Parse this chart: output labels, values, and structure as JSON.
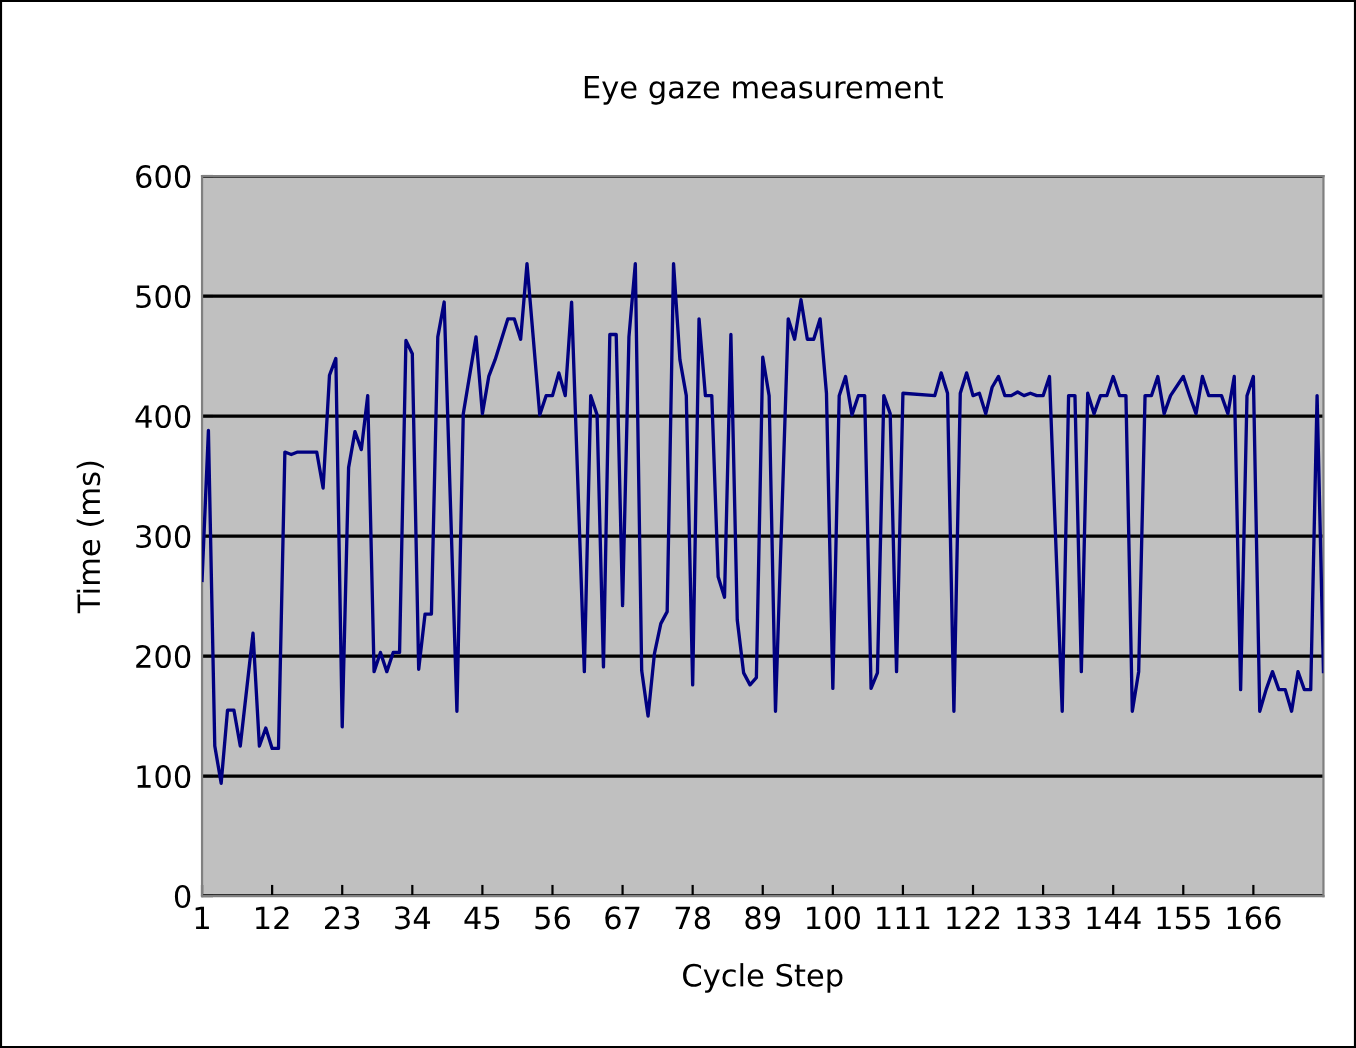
{
  "chart_data": {
    "type": "line",
    "title": "Eye gaze measurement",
    "xlabel": "Cycle Step",
    "ylabel": "Time (ms)",
    "x": [
      1,
      2,
      3,
      4,
      5,
      6,
      7,
      9,
      10,
      11,
      12,
      13,
      14,
      15,
      16,
      19,
      20,
      21,
      22,
      23,
      24,
      25,
      26,
      27,
      28,
      29,
      30,
      31,
      32,
      33,
      34,
      35,
      36,
      37,
      38,
      39,
      41,
      42,
      44,
      45,
      46,
      47,
      49,
      50,
      51,
      52,
      54,
      55,
      56,
      57,
      58,
      59,
      61,
      62,
      63,
      64,
      65,
      66,
      67,
      68,
      69,
      70,
      71,
      72,
      73,
      74,
      75,
      76,
      77,
      78,
      79,
      80,
      81,
      82,
      83,
      84,
      85,
      86,
      87,
      88,
      89,
      90,
      91,
      93,
      94,
      95,
      96,
      97,
      98,
      99,
      100,
      101,
      102,
      103,
      104,
      105,
      106,
      107,
      108,
      109,
      110,
      111,
      116,
      117,
      118,
      119,
      120,
      121,
      122,
      123,
      124,
      125,
      126,
      127,
      128,
      129,
      130,
      131,
      132,
      133,
      134,
      136,
      137,
      138,
      139,
      140,
      141,
      142,
      143,
      144,
      145,
      146,
      147,
      148,
      149,
      150,
      151,
      152,
      153,
      155,
      156,
      157,
      158,
      159,
      161,
      162,
      163,
      164,
      165,
      166,
      167,
      168,
      169,
      170,
      171,
      172,
      173,
      174,
      175,
      176,
      177
    ],
    "series": [
      {
        "color": "#000080",
        "values": [
          263,
          388,
          125,
          94,
          155,
          155,
          125,
          219,
          125,
          140,
          123,
          123,
          370,
          368,
          370,
          370,
          340,
          434,
          448,
          141,
          357,
          387,
          372,
          417,
          187,
          203,
          187,
          203,
          203,
          463,
          452,
          189,
          235,
          235,
          466,
          495,
          154,
          402,
          466,
          402,
          433,
          447,
          481,
          481,
          464,
          527,
          401,
          417,
          417,
          436,
          417,
          495,
          187,
          417,
          401,
          191,
          468,
          468,
          242,
          466,
          527,
          188,
          150,
          202,
          227,
          237,
          527,
          447,
          417,
          176,
          481,
          417,
          417,
          266,
          249,
          468,
          230,
          186,
          176,
          182,
          449,
          417,
          154,
          481,
          464,
          497,
          464,
          464,
          481,
          419,
          173,
          417,
          433,
          401,
          417,
          417,
          173,
          186,
          417,
          402,
          187,
          419,
          417,
          436,
          419,
          154,
          419,
          436,
          417,
          419,
          402,
          424,
          433,
          417,
          417,
          420,
          417,
          419,
          417,
          417,
          433,
          154,
          417,
          417,
          187,
          419,
          402,
          417,
          417,
          433,
          417,
          417,
          154,
          187,
          417,
          417,
          433,
          402,
          417,
          433,
          417,
          402,
          433,
          417,
          417,
          402,
          433,
          172,
          417,
          433,
          154,
          172,
          187,
          172,
          172,
          154,
          187,
          172,
          172,
          417,
          187
        ]
      }
    ],
    "xlim": [
      1,
      177
    ],
    "xticks": [
      1,
      12,
      23,
      34,
      45,
      56,
      67,
      78,
      89,
      100,
      111,
      122,
      133,
      144,
      155,
      166
    ],
    "ylim": [
      0,
      600
    ],
    "yticks": [
      0,
      100,
      200,
      300,
      400,
      500,
      600
    ],
    "grid": "y",
    "marker": "none",
    "line_style": "solid"
  }
}
